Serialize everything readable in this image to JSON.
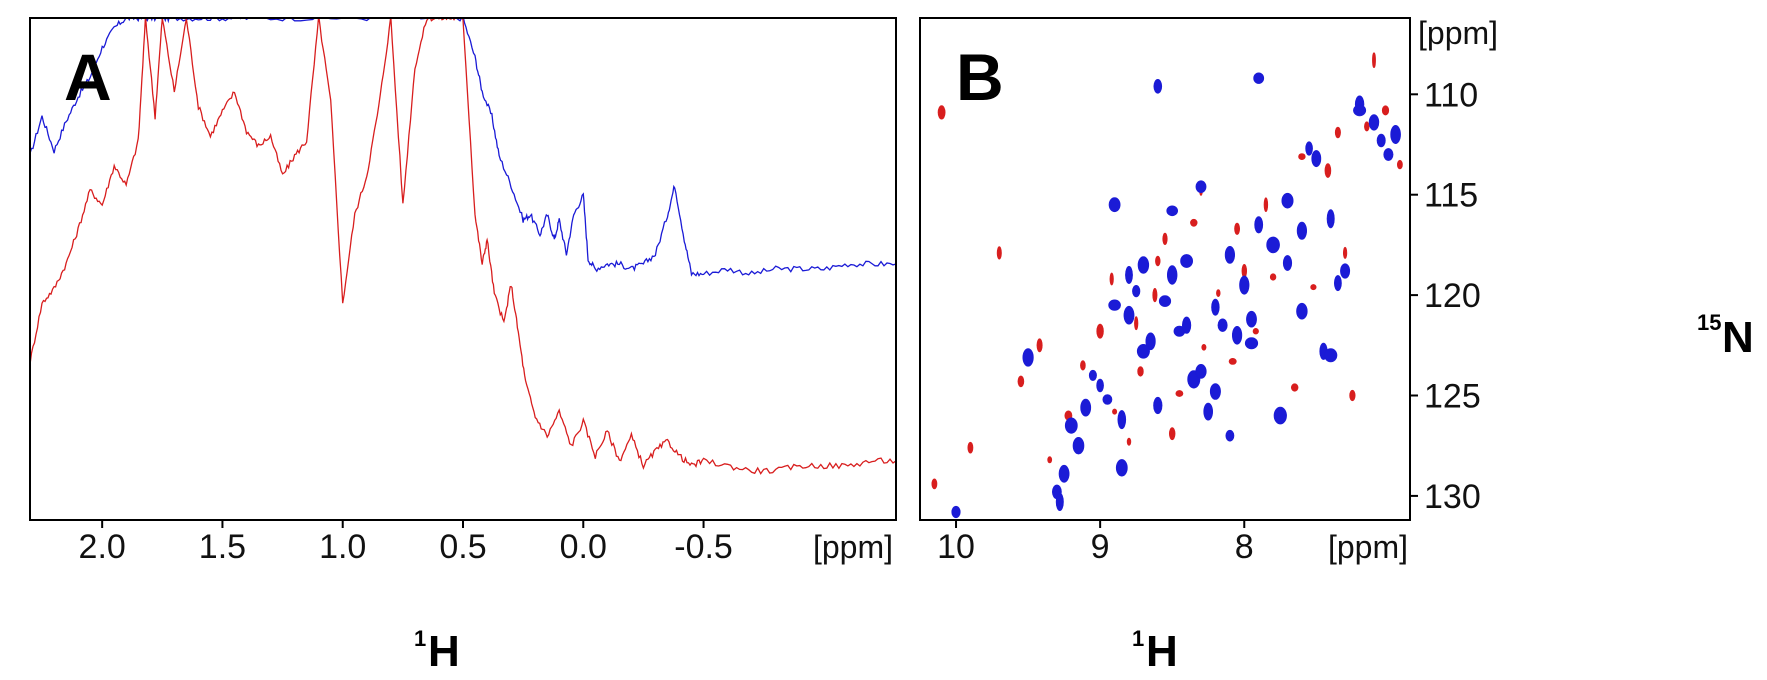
{
  "colors": {
    "red": "#d81e1e",
    "blue": "#1b1bd6",
    "frame": "#000000"
  },
  "chart_data": [
    {
      "type": "line",
      "panel_label": "A",
      "xlabel_sup": "1",
      "xlabel_main": "H",
      "x_unit": "[ppm]",
      "x_reversed": true,
      "xlim": [
        2.3,
        -1.3
      ],
      "ylim": [
        0,
        1
      ],
      "x_ticks": [
        {
          "value": 2.0,
          "label": "2.0"
        },
        {
          "value": 1.5,
          "label": "1.5"
        },
        {
          "value": 1.0,
          "label": "1.0"
        },
        {
          "value": 0.5,
          "label": "0.5"
        },
        {
          "value": 0.0,
          "label": "0.0"
        },
        {
          "value": -0.5,
          "label": "-0.5"
        }
      ],
      "series": [
        {
          "color": "blue",
          "x": [
            2.3,
            2.25,
            2.2,
            2.15,
            2.1,
            2.05,
            2.0,
            1.95,
            1.9,
            1.85,
            1.8,
            1.75,
            1.7,
            1.6,
            1.5,
            1.4,
            1.2,
            1.0,
            0.8,
            0.6,
            0.5,
            0.45,
            0.42,
            0.38,
            0.35,
            0.3,
            0.25,
            0.22,
            0.18,
            0.15,
            0.12,
            0.1,
            0.07,
            0.04,
            0.0,
            -0.02,
            -0.05,
            -0.1,
            -0.15,
            -0.2,
            -0.25,
            -0.3,
            -0.35,
            -0.38,
            -0.42,
            -0.45,
            -0.5,
            -0.6,
            -0.7,
            -0.8,
            -0.9,
            -1.0,
            -1.1,
            -1.2,
            -1.3
          ],
          "y": [
            0.72,
            0.8,
            0.73,
            0.79,
            0.84,
            0.88,
            0.94,
            0.98,
            1.0,
            1.0,
            1.0,
            1.0,
            1.0,
            1.0,
            1.0,
            1.0,
            1.0,
            1.0,
            1.0,
            1.0,
            1.0,
            0.92,
            0.85,
            0.8,
            0.72,
            0.66,
            0.59,
            0.6,
            0.56,
            0.6,
            0.55,
            0.59,
            0.52,
            0.6,
            0.64,
            0.51,
            0.49,
            0.5,
            0.5,
            0.49,
            0.5,
            0.52,
            0.6,
            0.66,
            0.55,
            0.48,
            0.48,
            0.49,
            0.48,
            0.49,
            0.49,
            0.49,
            0.5,
            0.5,
            0.5
          ]
        },
        {
          "color": "red",
          "x": [
            2.3,
            2.25,
            2.2,
            2.15,
            2.1,
            2.05,
            2.0,
            1.95,
            1.9,
            1.85,
            1.82,
            1.78,
            1.75,
            1.7,
            1.65,
            1.6,
            1.55,
            1.5,
            1.45,
            1.4,
            1.35,
            1.3,
            1.25,
            1.2,
            1.15,
            1.1,
            1.05,
            1.0,
            0.95,
            0.9,
            0.85,
            0.8,
            0.75,
            0.7,
            0.65,
            0.6,
            0.55,
            0.5,
            0.45,
            0.42,
            0.4,
            0.37,
            0.33,
            0.3,
            0.27,
            0.24,
            0.2,
            0.15,
            0.1,
            0.05,
            0.0,
            -0.05,
            -0.1,
            -0.15,
            -0.2,
            -0.25,
            -0.3,
            -0.35,
            -0.4,
            -0.45,
            -0.5,
            -0.6,
            -0.7,
            -0.8,
            -0.9,
            -1.0,
            -1.1,
            -1.2,
            -1.3
          ],
          "y": [
            0.3,
            0.42,
            0.45,
            0.5,
            0.57,
            0.65,
            0.62,
            0.7,
            0.66,
            0.75,
            1.0,
            0.8,
            1.0,
            0.85,
            1.0,
            0.82,
            0.76,
            0.81,
            0.85,
            0.77,
            0.74,
            0.76,
            0.68,
            0.72,
            0.75,
            1.0,
            0.83,
            0.42,
            0.6,
            0.68,
            0.82,
            1.0,
            0.62,
            0.9,
            1.0,
            1.0,
            1.0,
            1.0,
            0.6,
            0.5,
            0.55,
            0.44,
            0.38,
            0.46,
            0.36,
            0.26,
            0.19,
            0.15,
            0.2,
            0.13,
            0.18,
            0.11,
            0.16,
            0.1,
            0.15,
            0.09,
            0.12,
            0.14,
            0.11,
            0.09,
            0.1,
            0.09,
            0.08,
            0.08,
            0.09,
            0.09,
            0.09,
            0.1,
            0.1
          ]
        }
      ]
    },
    {
      "type": "scatter",
      "panel_label": "B",
      "xlabel_sup": "1",
      "xlabel_main": "H",
      "x_unit": "[ppm]",
      "ylabel_sup": "15",
      "ylabel_main": "N",
      "y_unit": "[ppm]",
      "x_reversed": true,
      "y_reversed": true,
      "xlim": [
        10.25,
        6.85
      ],
      "ylim": [
        106.2,
        131.2
      ],
      "x_ticks": [
        {
          "value": 10,
          "label": "10"
        },
        {
          "value": 9,
          "label": "9"
        },
        {
          "value": 8,
          "label": "8"
        }
      ],
      "y_ticks": [
        {
          "value": 110,
          "label": "110"
        },
        {
          "value": 115,
          "label": "115"
        },
        {
          "value": 120,
          "label": "120"
        },
        {
          "value": 125,
          "label": "125"
        },
        {
          "value": 130,
          "label": "130"
        }
      ],
      "series": [
        {
          "color": "blue",
          "x": [
            9.3,
            9.28,
            9.25,
            9.2,
            9.15,
            9.05,
            9.0,
            8.95,
            8.9,
            8.85,
            8.8,
            8.75,
            8.7,
            8.65,
            8.6,
            8.55,
            8.5,
            8.45,
            8.4,
            8.35,
            8.3,
            8.25,
            8.2,
            8.15,
            8.1,
            8.05,
            8.0,
            7.95,
            7.9,
            7.8,
            7.75,
            7.7,
            7.6,
            7.55,
            7.5,
            7.45,
            7.4,
            7.3,
            7.2,
            7.1,
            7.05,
            7.0,
            6.95,
            8.6,
            8.9,
            7.9,
            8.3,
            9.1,
            8.7,
            8.5,
            7.7,
            7.4,
            7.2,
            8.1,
            7.95,
            9.5,
            8.85,
            10.0,
            7.35,
            8.8,
            8.4,
            8.2,
            7.6
          ],
          "y": [
            129.8,
            130.3,
            128.9,
            126.5,
            127.5,
            124.0,
            124.5,
            125.2,
            120.5,
            126.2,
            121.0,
            119.8,
            118.5,
            122.3,
            125.5,
            120.3,
            119.0,
            121.8,
            118.3,
            124.2,
            123.8,
            125.8,
            120.6,
            121.5,
            118.0,
            122.0,
            119.5,
            121.2,
            116.5,
            117.5,
            126.0,
            115.3,
            116.8,
            112.7,
            113.2,
            122.8,
            116.2,
            118.8,
            110.5,
            111.4,
            112.3,
            113.0,
            112.0,
            109.6,
            115.5,
            109.2,
            114.6,
            125.6,
            122.8,
            115.8,
            118.4,
            123.0,
            110.8,
            127.0,
            122.4,
            123.1,
            128.6,
            130.8,
            119.4,
            119.0,
            121.5,
            124.8,
            120.8
          ]
        },
        {
          "color": "red",
          "x": [
            9.35,
            9.22,
            9.12,
            9.0,
            8.92,
            8.8,
            8.72,
            8.62,
            8.55,
            8.45,
            8.35,
            8.28,
            8.18,
            8.08,
            8.0,
            7.92,
            7.85,
            7.65,
            7.52,
            7.42,
            7.3,
            7.15,
            7.02,
            6.92,
            9.9,
            10.1,
            9.7,
            8.3,
            8.6,
            7.6,
            7.25,
            8.05,
            9.42,
            8.9,
            8.5,
            7.8,
            7.35,
            7.1,
            10.15,
            9.55,
            8.75
          ],
          "y": [
            128.2,
            126.0,
            123.5,
            121.8,
            119.2,
            127.3,
            123.8,
            120.0,
            117.2,
            124.9,
            116.4,
            122.6,
            119.9,
            123.3,
            118.8,
            121.8,
            115.5,
            124.6,
            119.6,
            113.8,
            117.9,
            111.6,
            110.8,
            113.5,
            127.6,
            110.9,
            117.9,
            114.7,
            118.3,
            113.1,
            125.0,
            116.7,
            122.5,
            125.8,
            126.9,
            119.1,
            111.9,
            108.3,
            129.4,
            124.3,
            121.4
          ]
        }
      ]
    }
  ]
}
